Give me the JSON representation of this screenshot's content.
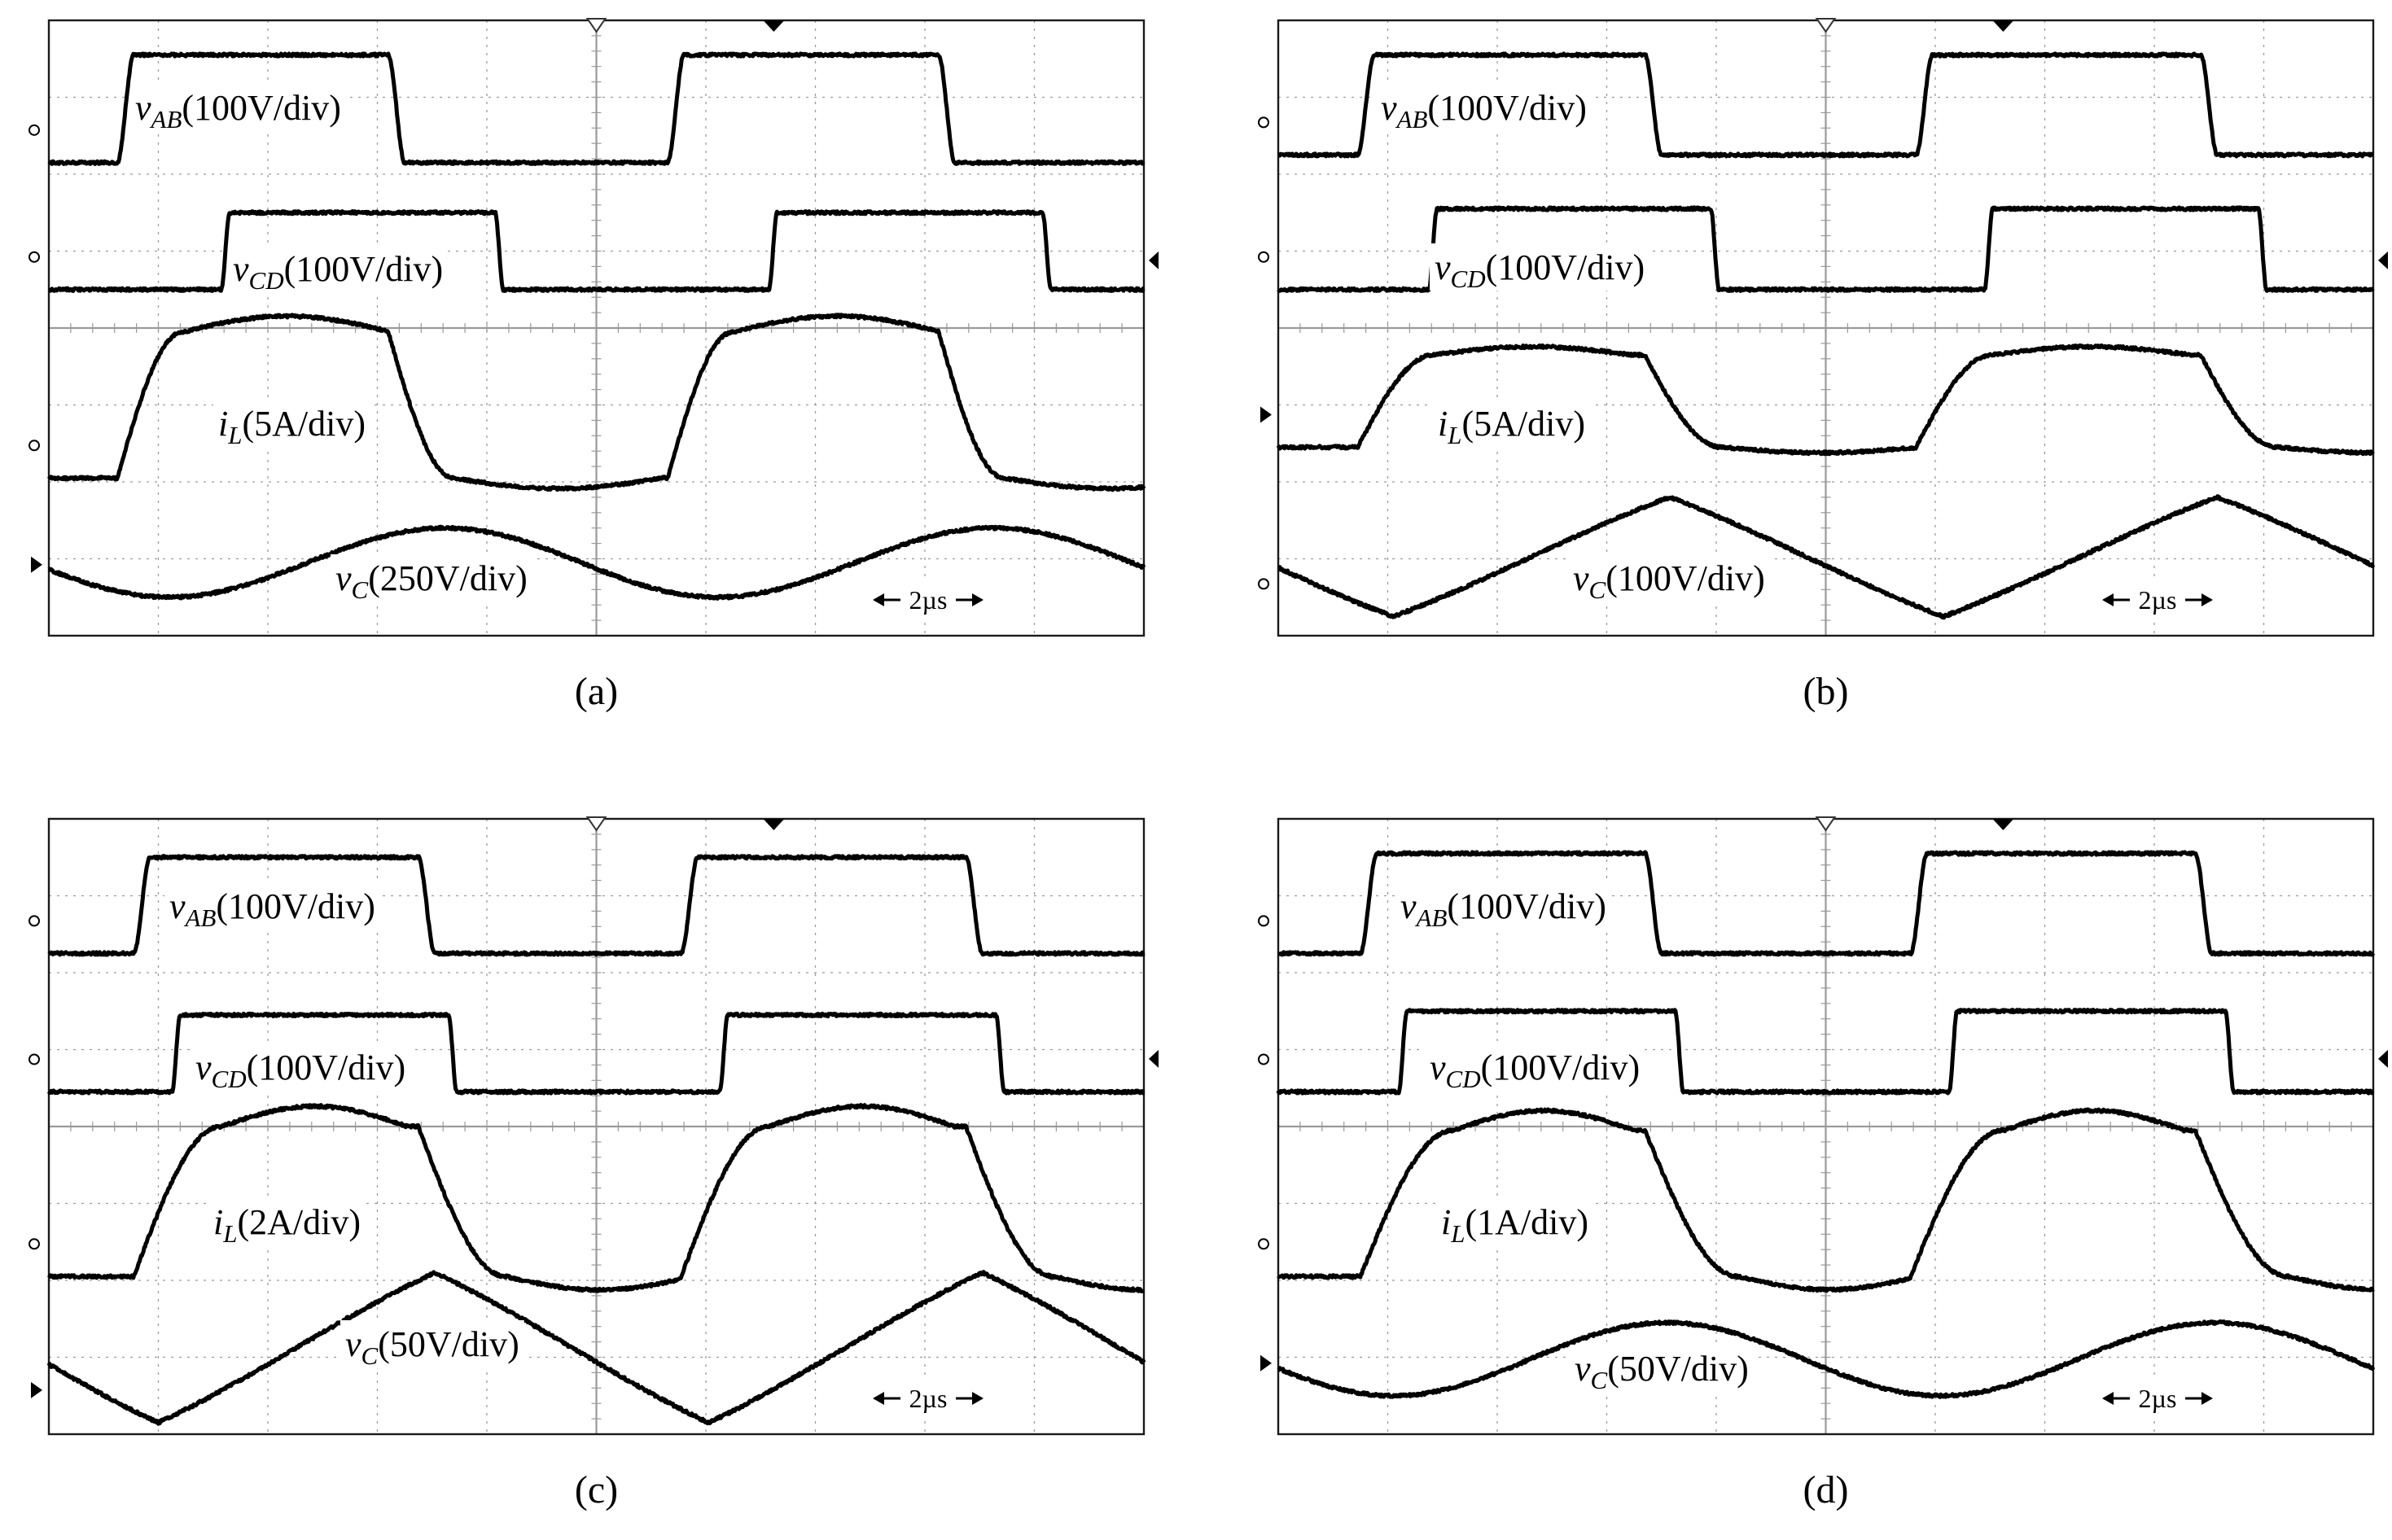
{
  "figure": {
    "time_base": "2µs",
    "colors": {
      "trace": "#000000",
      "grid": "#9a9a9a",
      "frame": "#1a1a1a",
      "background": "#ffffff"
    }
  },
  "chart_data": [
    {
      "type": "line",
      "caption": "(a)",
      "x_unit": "µs",
      "x_per_div": 2,
      "xlim": [
        0,
        20
      ],
      "ylim": [
        -4,
        4
      ],
      "grid": true,
      "time_base_label": "2µs",
      "series": [
        {
          "id": "vab",
          "var": "v",
          "sub": "AB",
          "scale": "(100V/div)",
          "kind": "square",
          "t_rise": [
            1.25,
            11.3
          ],
          "t_fall": [
            6.2,
            16.25
          ],
          "high": 3.55,
          "low": 2.15,
          "edge_us": 0.3
        },
        {
          "id": "vcd",
          "var": "v",
          "sub": "CD",
          "scale": "(100V/div)",
          "kind": "square",
          "t_rise": [
            3.15,
            13.15
          ],
          "t_fall": [
            8.15,
            18.15
          ],
          "high": 1.5,
          "low": 0.5,
          "edge_us": 0.15
        },
        {
          "id": "il",
          "var": "i",
          "sub": "L",
          "scale": "(5A/div)",
          "kind": "current",
          "t_rise": [
            1.25,
            11.3
          ],
          "t_fall": [
            6.2,
            16.25
          ],
          "v_max": -0.05,
          "v_min": -1.95,
          "edge_us": 1.2,
          "sag": 0.12
        },
        {
          "id": "vc",
          "var": "v",
          "sub": "C",
          "scale": "(250V/div)",
          "kind": "triangle",
          "t_peak": [
            7.25,
            17.25
          ],
          "t_valley": [
            2.2,
            12.2
          ],
          "v_max": -2.6,
          "v_min": -3.5,
          "smooth": true
        }
      ]
    },
    {
      "type": "line",
      "caption": "(b)",
      "x_unit": "µs",
      "x_per_div": 2,
      "xlim": [
        0,
        20
      ],
      "ylim": [
        -4,
        4
      ],
      "grid": true,
      "time_base_label": "2µs",
      "series": [
        {
          "id": "vab",
          "var": "v",
          "sub": "AB",
          "scale": "(100V/div)",
          "kind": "square",
          "t_rise": [
            1.45,
            11.65
          ],
          "t_fall": [
            6.7,
            16.85
          ],
          "high": 3.55,
          "low": 2.25,
          "edge_us": 0.3
        },
        {
          "id": "vcd",
          "var": "v",
          "sub": "CD",
          "scale": "(100V/div)",
          "kind": "square",
          "t_rise": [
            2.75,
            12.9
          ],
          "t_fall": [
            7.9,
            17.9
          ],
          "high": 1.55,
          "low": 0.5,
          "edge_us": 0.15
        },
        {
          "id": "il",
          "var": "i",
          "sub": "L",
          "scale": "(5A/div)",
          "kind": "current",
          "t_rise": [
            1.45,
            11.65
          ],
          "t_fall": [
            6.7,
            16.85
          ],
          "v_max": -0.35,
          "v_min": -1.55,
          "edge_us": 1.4,
          "sag": 0.1
        },
        {
          "id": "vc",
          "var": "v",
          "sub": "C",
          "scale": "(100V/div)",
          "kind": "triangle",
          "t_peak": [
            7.15,
            17.15
          ],
          "t_valley": [
            2.1,
            12.15
          ],
          "v_max": -2.2,
          "v_min": -3.75,
          "smooth": false
        }
      ]
    },
    {
      "type": "line",
      "caption": "(c)",
      "x_unit": "µs",
      "x_per_div": 2,
      "xlim": [
        0,
        20
      ],
      "ylim": [
        -4,
        4
      ],
      "grid": true,
      "time_base_label": "2µs",
      "series": [
        {
          "id": "vab",
          "var": "v",
          "sub": "AB",
          "scale": "(100V/div)",
          "kind": "square",
          "t_rise": [
            1.55,
            11.55
          ],
          "t_fall": [
            6.75,
            16.75
          ],
          "high": 3.5,
          "low": 2.25,
          "edge_us": 0.3
        },
        {
          "id": "vcd",
          "var": "v",
          "sub": "CD",
          "scale": "(100V/div)",
          "kind": "square",
          "t_rise": [
            2.25,
            12.25
          ],
          "t_fall": [
            7.3,
            17.3
          ],
          "high": 1.45,
          "low": 0.45,
          "edge_us": 0.15
        },
        {
          "id": "il",
          "var": "i",
          "sub": "L",
          "scale": "(2A/div)",
          "kind": "current",
          "t_rise": [
            1.55,
            11.55
          ],
          "t_fall": [
            6.75,
            16.75
          ],
          "v_max": -0.0,
          "v_min": -1.95,
          "edge_us": 1.6,
          "sag": 0.15
        },
        {
          "id": "vc",
          "var": "v",
          "sub": "C",
          "scale": "(50V/div)",
          "kind": "triangle",
          "t_peak": [
            7.05,
            17.05
          ],
          "t_valley": [
            2.0,
            12.05
          ],
          "v_max": -1.9,
          "v_min": -3.85,
          "smooth": false
        }
      ]
    },
    {
      "type": "line",
      "caption": "(d)",
      "x_unit": "µs",
      "x_per_div": 2,
      "xlim": [
        0,
        20
      ],
      "ylim": [
        -4,
        4
      ],
      "grid": true,
      "time_base_label": "2µs",
      "series": [
        {
          "id": "vab",
          "var": "v",
          "sub": "AB",
          "scale": "(100V/div)",
          "kind": "square",
          "t_rise": [
            1.5,
            11.55
          ],
          "t_fall": [
            6.7,
            16.75
          ],
          "high": 3.55,
          "low": 2.25,
          "edge_us": 0.3
        },
        {
          "id": "vcd",
          "var": "v",
          "sub": "CD",
          "scale": "(100V/div)",
          "kind": "square",
          "t_rise": [
            2.2,
            12.25
          ],
          "t_fall": [
            7.25,
            17.3
          ],
          "high": 1.5,
          "low": 0.45,
          "edge_us": 0.15
        },
        {
          "id": "il",
          "var": "i",
          "sub": "L",
          "scale": "(1A/div)",
          "kind": "current",
          "t_rise": [
            1.5,
            11.55
          ],
          "t_fall": [
            6.7,
            16.75
          ],
          "v_max": -0.05,
          "v_min": -1.95,
          "edge_us": 1.7,
          "sag": 0.15
        },
        {
          "id": "vc",
          "var": "v",
          "sub": "C",
          "scale": "(50V/div)",
          "kind": "triangle",
          "t_peak": [
            7.1,
            17.1
          ],
          "t_valley": [
            2.1,
            12.1
          ],
          "v_max": -2.55,
          "v_min": -3.5,
          "smooth": true
        }
      ]
    }
  ]
}
